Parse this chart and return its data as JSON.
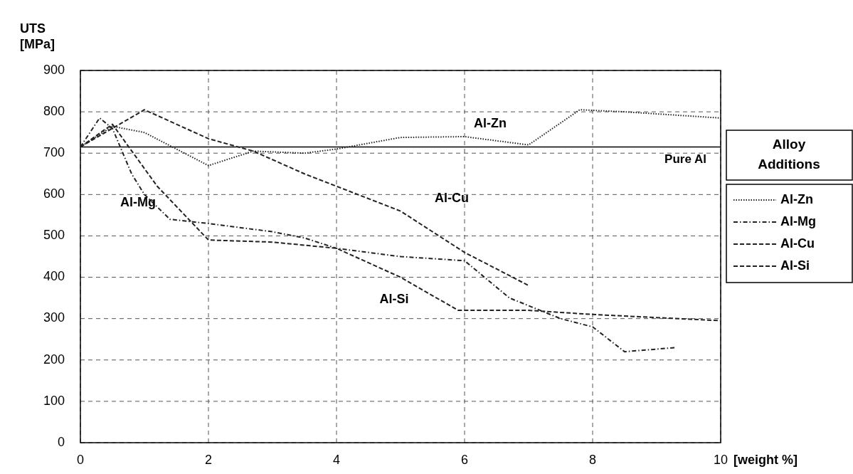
{
  "chart_data": {
    "type": "line",
    "ylabel": "UTS [MPa]",
    "xlabel": "[weight %]",
    "legend_title": "Alloy Additions",
    "legend": "right",
    "grid": true,
    "xlim": [
      0,
      10
    ],
    "xticks": [
      0,
      2,
      4,
      6,
      8,
      10
    ],
    "ylim": [
      0,
      900
    ],
    "yticks": [
      0,
      100,
      200,
      300,
      400,
      500,
      600,
      700,
      800,
      900
    ],
    "ref_lines": [
      {
        "axis": "y",
        "value": 715,
        "label": "Pure Al"
      }
    ],
    "series": [
      {
        "name": "Al-Zn",
        "color": "#222222",
        "line_style": "dotted",
        "x": [
          0,
          0.5,
          1,
          2,
          2.7,
          3.5,
          4,
          5,
          6,
          7,
          7.8,
          8.5,
          10
        ],
        "values": [
          715,
          765,
          750,
          670,
          705,
          700,
          710,
          738,
          740,
          720,
          805,
          800,
          785
        ]
      },
      {
        "name": "Al-Mg",
        "color": "#222222",
        "line_style": "dashdot",
        "x": [
          0,
          0.3,
          0.5,
          0.8,
          1,
          1.4,
          2,
          3,
          3.5,
          4,
          5,
          6,
          6.7,
          7.5,
          8,
          8.5,
          9.3
        ],
        "values": [
          715,
          785,
          760,
          650,
          600,
          540,
          530,
          510,
          495,
          470,
          450,
          440,
          350,
          300,
          280,
          220,
          230
        ]
      },
      {
        "name": "Al-Cu",
        "color": "#222222",
        "line_style": "dashed",
        "x": [
          0,
          1,
          2,
          2.7,
          3.5,
          4,
          5,
          6,
          7
        ],
        "values": [
          715,
          805,
          735,
          705,
          650,
          620,
          560,
          460,
          380
        ]
      },
      {
        "name": "Al-Si",
        "color": "#222222",
        "line_style": "dashed",
        "x": [
          0,
          0.5,
          1.2,
          2,
          3,
          4,
          5,
          5.9,
          7,
          8,
          10
        ],
        "values": [
          715,
          770,
          620,
          490,
          485,
          470,
          400,
          320,
          320,
          310,
          295
        ]
      }
    ],
    "annotations": [
      "Al-Zn",
      "Al-Mg",
      "Al-Cu",
      "Al-Si"
    ]
  }
}
